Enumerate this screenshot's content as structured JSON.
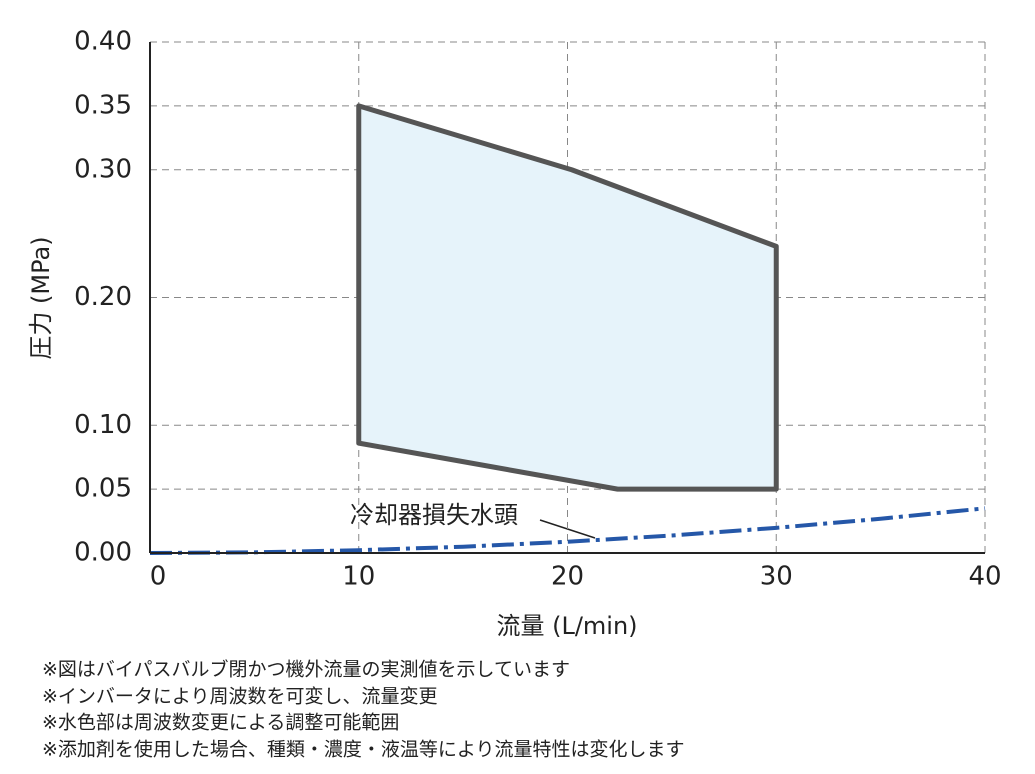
{
  "chart_data": {
    "type": "line",
    "x_label": "流量 (L/min)",
    "y_label": "圧力 (MPa)",
    "xlim": [
      0,
      40
    ],
    "xticks": [
      0,
      10,
      20,
      30,
      40
    ],
    "ylim": [
      0,
      0.4
    ],
    "yticks": [
      {
        "value": 0,
        "label": "0.00"
      },
      {
        "value": 0.05,
        "label": "0.05"
      },
      {
        "value": 0.1,
        "label": "0.10"
      },
      {
        "value": 0.2,
        "label": "0.20"
      },
      {
        "value": 0.3,
        "label": "0.30"
      },
      {
        "value": 0.35,
        "label": "0.35"
      },
      {
        "value": 0.4,
        "label": "0.40"
      }
    ],
    "grid": true,
    "series": [
      {
        "color": "#555555",
        "fill": "#e6f3fa",
        "closed": true,
        "x": [
          10,
          20.2,
          30,
          30,
          22.4,
          10
        ],
        "values": [
          0.35,
          0.3,
          0.24,
          0.05,
          0.05,
          0.086
        ]
      },
      {
        "color": "#2557a8",
        "dashed": true,
        "x": [
          0,
          5,
          10,
          15,
          20,
          25,
          30,
          35,
          40
        ],
        "values": [
          0,
          0.0005,
          0.0022,
          0.0049,
          0.0088,
          0.0137,
          0.0197,
          0.0268,
          0.035
        ]
      }
    ],
    "annotation": "冷却器損失水頭",
    "notes": [
      "※図はバイパスバルブ閉かつ機外流量の実測値を示しています",
      "※インバータにより周波数を可変し、流量変更",
      "※水色部は周波数変更による調整可能範囲",
      "※添加剤を使用した場合、種類・濃度・液温等により流量特性は変化します"
    ]
  }
}
